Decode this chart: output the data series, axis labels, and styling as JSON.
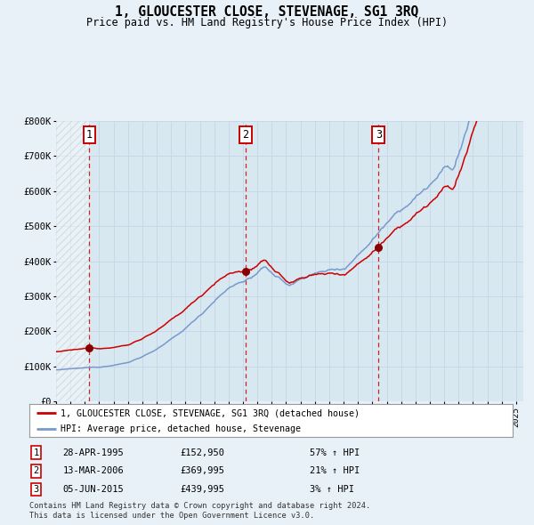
{
  "title": "1, GLOUCESTER CLOSE, STEVENAGE, SG1 3RQ",
  "subtitle": "Price paid vs. HM Land Registry's House Price Index (HPI)",
  "legend_property": "1, GLOUCESTER CLOSE, STEVENAGE, SG1 3RQ (detached house)",
  "legend_hpi": "HPI: Average price, detached house, Stevenage",
  "footer1": "Contains HM Land Registry data © Crown copyright and database right 2024.",
  "footer2": "This data is licensed under the Open Government Licence v3.0.",
  "purchases": [
    {
      "num": 1,
      "date": "28-APR-1995",
      "price": 152950,
      "pct": "57%",
      "dir": "↑"
    },
    {
      "num": 2,
      "date": "13-MAR-2006",
      "price": 369995,
      "pct": "21%",
      "dir": "↑"
    },
    {
      "num": 3,
      "date": "05-JUN-2015",
      "price": 439995,
      "pct": "3%",
      "dir": "↑"
    }
  ],
  "purchase_years": [
    1995.32,
    2006.19,
    2015.43
  ],
  "purchase_prices": [
    152950,
    369995,
    439995
  ],
  "ylim": [
    0,
    800000
  ],
  "yticks": [
    0,
    100000,
    200000,
    300000,
    400000,
    500000,
    600000,
    700000,
    800000
  ],
  "ytick_labels": [
    "£0",
    "£100K",
    "£200K",
    "£300K",
    "£400K",
    "£500K",
    "£600K",
    "£700K",
    "£800K"
  ],
  "xlim_start": 1993.0,
  "xlim_end": 2025.5,
  "hatch_end": 1995.32,
  "line_color_property": "#cc0000",
  "line_color_hpi": "#7799cc",
  "marker_color": "#880000",
  "grid_color": "#c8d8e8",
  "bg_color": "#e8f0f8",
  "plot_bg": "#d8e8f0",
  "dashed_line_color": "#cc0000",
  "hatch_color": "#c0c8d0"
}
